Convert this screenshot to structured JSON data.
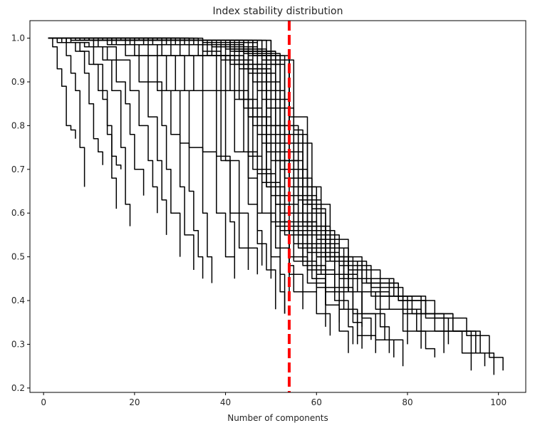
{
  "chart_data": {
    "type": "line",
    "title": "Index stability distribution",
    "xlabel": "Number of components",
    "ylabel": "",
    "xlim": [
      -3,
      106
    ],
    "ylim": [
      0.19,
      1.04
    ],
    "xticks": [
      0,
      20,
      40,
      60,
      80,
      100
    ],
    "yticks": [
      0.2,
      0.3,
      0.4,
      0.5,
      0.6,
      0.7,
      0.8,
      0.9,
      1.0
    ],
    "grid": false,
    "legend": "none",
    "line_color": "#000000",
    "reference_line": {
      "x": 54,
      "color": "#ff0000",
      "style": "dashed"
    },
    "series": [
      {
        "x": [
          1,
          2,
          3,
          4,
          5,
          6,
          7
        ],
        "values": [
          1.0,
          0.98,
          0.93,
          0.89,
          0.8,
          0.79,
          0.77
        ]
      },
      {
        "x": [
          1,
          3,
          5,
          6,
          7,
          8,
          9
        ],
        "values": [
          1.0,
          0.99,
          0.96,
          0.92,
          0.88,
          0.75,
          0.66
        ]
      },
      {
        "x": [
          1,
          4,
          7,
          9,
          10,
          11,
          12,
          13
        ],
        "values": [
          1.0,
          0.99,
          0.97,
          0.92,
          0.85,
          0.77,
          0.74,
          0.71
        ]
      },
      {
        "x": [
          1,
          5,
          8,
          10,
          12,
          14,
          15,
          16,
          17
        ],
        "values": [
          1.0,
          0.99,
          0.97,
          0.94,
          0.88,
          0.8,
          0.73,
          0.71,
          0.7
        ]
      },
      {
        "x": [
          1,
          5,
          9,
          11,
          13,
          14,
          15,
          16
        ],
        "values": [
          1.0,
          0.99,
          0.98,
          0.94,
          0.86,
          0.78,
          0.68,
          0.61
        ]
      },
      {
        "x": [
          1,
          6,
          10,
          13,
          15,
          17,
          18,
          19
        ],
        "values": [
          1.0,
          0.99,
          0.98,
          0.95,
          0.88,
          0.75,
          0.62,
          0.57
        ]
      },
      {
        "x": [
          1,
          6,
          11,
          14,
          16,
          18,
          19,
          20,
          22
        ],
        "values": [
          1.0,
          0.995,
          0.98,
          0.95,
          0.9,
          0.85,
          0.78,
          0.7,
          0.64
        ]
      },
      {
        "x": [
          1,
          7,
          12,
          16,
          19,
          21,
          23,
          24,
          25
        ],
        "values": [
          1.0,
          0.995,
          0.98,
          0.95,
          0.88,
          0.8,
          0.72,
          0.66,
          0.6
        ]
      },
      {
        "x": [
          1,
          8,
          14,
          18,
          21,
          23,
          25,
          26,
          27
        ],
        "values": [
          1.0,
          0.995,
          0.985,
          0.96,
          0.9,
          0.82,
          0.72,
          0.63,
          0.55
        ]
      },
      {
        "x": [
          1,
          8,
          15,
          20,
          23,
          26,
          27,
          28,
          30
        ],
        "values": [
          1.0,
          0.995,
          0.985,
          0.96,
          0.9,
          0.8,
          0.7,
          0.6,
          0.5
        ]
      },
      {
        "x": [
          1,
          9,
          16,
          21,
          25,
          28,
          30,
          31,
          33
        ],
        "values": [
          1.0,
          0.995,
          0.985,
          0.96,
          0.88,
          0.78,
          0.66,
          0.55,
          0.47
        ]
      },
      {
        "x": [
          1,
          10,
          18,
          23,
          27,
          30,
          32,
          33,
          34,
          35
        ],
        "values": [
          1.0,
          0.995,
          0.985,
          0.96,
          0.88,
          0.76,
          0.65,
          0.56,
          0.5,
          0.45
        ]
      },
      {
        "x": [
          1,
          10,
          19,
          25,
          29,
          32,
          35,
          36,
          37
        ],
        "values": [
          1.0,
          0.995,
          0.985,
          0.96,
          0.88,
          0.75,
          0.6,
          0.5,
          0.44
        ]
      },
      {
        "x": [
          1,
          11,
          20,
          26,
          31,
          35,
          38,
          40,
          42
        ],
        "values": [
          1.0,
          0.995,
          0.985,
          0.96,
          0.88,
          0.74,
          0.6,
          0.5,
          0.45
        ]
      },
      {
        "x": [
          1,
          12,
          22,
          28,
          33,
          38,
          41,
          43,
          45
        ],
        "values": [
          1.0,
          0.995,
          0.985,
          0.96,
          0.88,
          0.73,
          0.6,
          0.52,
          0.47
        ]
      },
      {
        "x": [
          1,
          12,
          23,
          30,
          35,
          40,
          43,
          45,
          47
        ],
        "values": [
          1.0,
          0.995,
          0.985,
          0.96,
          0.88,
          0.72,
          0.6,
          0.52,
          0.46
        ]
      },
      {
        "x": [
          1,
          13,
          24,
          32,
          38,
          42,
          45,
          47,
          49,
          50
        ],
        "values": [
          1.0,
          0.995,
          0.985,
          0.96,
          0.88,
          0.74,
          0.62,
          0.53,
          0.47,
          0.45
        ]
      },
      {
        "x": [
          1,
          14,
          26,
          34,
          40,
          44,
          47,
          50,
          52,
          53
        ],
        "values": [
          1.0,
          0.995,
          0.985,
          0.96,
          0.88,
          0.74,
          0.6,
          0.5,
          0.42,
          0.37
        ]
      },
      {
        "x": [
          1,
          15,
          27,
          35,
          41,
          45,
          48,
          51,
          54,
          57,
          60,
          62
        ],
        "values": [
          1.0,
          0.995,
          0.985,
          0.96,
          0.88,
          0.73,
          0.6,
          0.52,
          0.46,
          0.42,
          0.37,
          0.34
        ]
      },
      {
        "x": [
          1,
          15,
          28,
          36,
          42,
          46,
          50,
          54,
          58,
          62,
          65,
          67
        ],
        "values": [
          1.0,
          0.995,
          0.985,
          0.96,
          0.86,
          0.7,
          0.58,
          0.5,
          0.44,
          0.39,
          0.33,
          0.28
        ]
      },
      {
        "x": [
          1,
          16,
          29,
          37,
          43,
          47,
          51,
          55,
          60,
          65,
          69,
          73
        ],
        "values": [
          1.0,
          0.995,
          0.985,
          0.96,
          0.86,
          0.69,
          0.57,
          0.49,
          0.43,
          0.38,
          0.32,
          0.28
        ]
      },
      {
        "x": [
          1,
          17,
          30,
          38,
          44,
          48,
          52,
          57,
          62,
          68,
          73,
          77
        ],
        "values": [
          1.0,
          0.995,
          0.985,
          0.96,
          0.84,
          0.67,
          0.56,
          0.48,
          0.42,
          0.37,
          0.31,
          0.27
        ]
      },
      {
        "x": [
          1,
          18,
          30,
          39,
          45,
          49,
          53,
          58,
          64,
          70,
          75,
          79
        ],
        "values": [
          1.0,
          0.995,
          0.985,
          0.95,
          0.82,
          0.66,
          0.55,
          0.47,
          0.42,
          0.37,
          0.31,
          0.25
        ]
      },
      {
        "x": [
          1,
          18,
          31,
          39,
          45,
          50,
          55,
          61,
          67,
          73,
          79,
          84,
          86
        ],
        "values": [
          1.0,
          0.995,
          0.985,
          0.95,
          0.82,
          0.64,
          0.53,
          0.46,
          0.42,
          0.38,
          0.33,
          0.29,
          0.27
        ]
      },
      {
        "x": [
          1,
          19,
          32,
          40,
          46,
          51,
          56,
          62,
          69,
          76,
          82,
          88
        ],
        "values": [
          1.0,
          0.995,
          0.985,
          0.95,
          0.8,
          0.62,
          0.52,
          0.46,
          0.42,
          0.38,
          0.33,
          0.28
        ]
      },
      {
        "x": [
          1,
          20,
          33,
          41,
          47,
          52,
          58,
          65,
          72,
          79,
          86,
          92,
          94
        ],
        "values": [
          1.0,
          0.995,
          0.985,
          0.94,
          0.78,
          0.6,
          0.51,
          0.45,
          0.41,
          0.37,
          0.33,
          0.28,
          0.24
        ]
      },
      {
        "x": [
          1,
          20,
          34,
          42,
          48,
          54,
          60,
          67,
          74,
          81,
          88,
          94,
          97
        ],
        "values": [
          1.0,
          0.995,
          0.985,
          0.94,
          0.76,
          0.58,
          0.5,
          0.45,
          0.41,
          0.37,
          0.33,
          0.28,
          0.25
        ]
      },
      {
        "x": [
          1,
          21,
          35,
          43,
          49,
          55,
          62,
          69,
          76,
          83,
          90,
          96,
          99
        ],
        "values": [
          1.0,
          0.995,
          0.985,
          0.93,
          0.74,
          0.57,
          0.49,
          0.45,
          0.41,
          0.37,
          0.33,
          0.28,
          0.23
        ]
      },
      {
        "x": [
          1,
          22,
          36,
          44,
          50,
          56,
          63,
          70,
          78,
          86,
          93,
          98,
          101
        ],
        "values": [
          1.0,
          0.995,
          0.985,
          0.93,
          0.72,
          0.56,
          0.49,
          0.44,
          0.4,
          0.36,
          0.32,
          0.27,
          0.24
        ]
      },
      {
        "x": [
          1,
          22,
          37,
          45,
          51,
          57,
          63,
          70,
          77,
          84,
          90,
          95
        ],
        "values": [
          1.0,
          0.995,
          0.98,
          0.92,
          0.72,
          0.57,
          0.5,
          0.45,
          0.41,
          0.37,
          0.33,
          0.28
        ]
      },
      {
        "x": [
          1,
          23,
          38,
          46,
          52,
          58,
          64,
          71,
          78,
          84,
          89
        ],
        "values": [
          1.0,
          0.995,
          0.98,
          0.9,
          0.7,
          0.56,
          0.49,
          0.44,
          0.4,
          0.36,
          0.3
        ]
      },
      {
        "x": [
          1,
          24,
          39,
          47,
          53,
          59,
          65,
          72,
          79,
          83
        ],
        "values": [
          1.0,
          0.995,
          0.98,
          0.88,
          0.68,
          0.55,
          0.48,
          0.43,
          0.38,
          0.29
        ]
      },
      {
        "x": [
          1,
          24,
          40,
          48,
          54,
          60,
          67,
          74,
          80
        ],
        "values": [
          1.0,
          0.995,
          0.975,
          0.86,
          0.66,
          0.54,
          0.47,
          0.41,
          0.3
        ]
      },
      {
        "x": [
          1,
          25,
          41,
          49,
          55,
          60,
          66,
          70,
          72
        ],
        "values": [
          1.0,
          0.995,
          0.975,
          0.84,
          0.64,
          0.52,
          0.45,
          0.36,
          0.31
        ]
      },
      {
        "x": [
          1,
          26,
          42,
          50,
          55,
          60,
          64,
          67,
          68
        ],
        "values": [
          1.0,
          0.995,
          0.97,
          0.8,
          0.6,
          0.5,
          0.4,
          0.34,
          0.3
        ]
      },
      {
        "x": [
          1,
          26,
          43,
          51,
          56,
          61,
          65,
          68,
          70
        ],
        "values": [
          1.0,
          0.995,
          0.97,
          0.8,
          0.63,
          0.53,
          0.43,
          0.35,
          0.29
        ]
      },
      {
        "x": [
          1,
          27,
          44,
          51,
          57,
          62,
          68,
          74,
          76
        ],
        "values": [
          1.0,
          0.995,
          0.97,
          0.78,
          0.6,
          0.5,
          0.42,
          0.34,
          0.28
        ]
      },
      {
        "x": [
          1,
          28,
          44,
          52,
          58,
          63,
          67,
          70
        ],
        "values": [
          1.0,
          0.995,
          0.965,
          0.78,
          0.62,
          0.52,
          0.42,
          0.34
        ]
      },
      {
        "x": [
          1,
          28,
          45,
          52,
          56,
          59,
          62,
          63
        ],
        "values": [
          1.0,
          0.995,
          0.96,
          0.72,
          0.55,
          0.45,
          0.37,
          0.32
        ]
      },
      {
        "x": [
          1,
          29,
          46,
          53,
          57,
          60,
          62
        ],
        "values": [
          1.0,
          0.995,
          0.96,
          0.74,
          0.58,
          0.46,
          0.39
        ]
      },
      {
        "x": [
          1,
          30,
          47,
          54,
          58,
          61,
          64,
          65
        ],
        "values": [
          1.0,
          0.995,
          0.96,
          0.82,
          0.66,
          0.53,
          0.42,
          0.35
        ]
      },
      {
        "x": [
          1,
          30,
          48,
          54,
          59,
          62,
          66,
          69
        ],
        "values": [
          1.0,
          0.995,
          0.95,
          0.76,
          0.61,
          0.5,
          0.38,
          0.3
        ]
      },
      {
        "x": [
          1,
          31,
          49,
          55,
          57,
          59,
          60
        ],
        "values": [
          1.0,
          0.995,
          0.95,
          0.79,
          0.62,
          0.49,
          0.42
        ]
      },
      {
        "x": [
          1,
          32,
          50,
          54,
          56,
          57
        ],
        "values": [
          1.0,
          0.995,
          0.95,
          0.78,
          0.63,
          0.49
        ]
      },
      {
        "x": [
          1,
          32,
          50,
          53,
          54
        ],
        "values": [
          1.0,
          0.995,
          0.94,
          0.58,
          0.4
        ]
      },
      {
        "x": [
          1,
          33,
          48,
          51,
          52,
          53
        ],
        "values": [
          1.0,
          0.995,
          0.96,
          0.62,
          0.46,
          0.37
        ]
      },
      {
        "x": [
          1,
          34,
          46,
          49,
          50,
          51
        ],
        "values": [
          1.0,
          0.995,
          0.96,
          0.66,
          0.47,
          0.38
        ]
      },
      {
        "x": [
          1,
          35,
          47,
          52,
          54,
          55,
          57
        ],
        "values": [
          1.0,
          0.99,
          0.94,
          0.58,
          0.48,
          0.42,
          0.38
        ]
      },
      {
        "x": [
          1,
          27,
          41,
          45,
          47,
          48
        ],
        "values": [
          1.0,
          0.995,
          0.97,
          0.68,
          0.56,
          0.48
        ]
      },
      {
        "x": [
          1,
          23,
          35,
          39,
          41,
          42
        ],
        "values": [
          1.0,
          0.995,
          0.97,
          0.72,
          0.58,
          0.5
        ]
      }
    ]
  }
}
